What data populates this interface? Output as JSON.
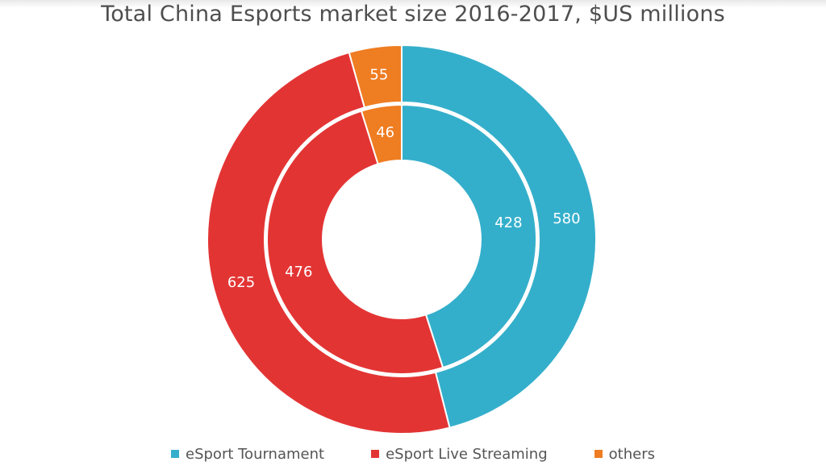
{
  "chart_data": {
    "type": "pie",
    "title": "Total China Esports market size 2016-2017, $US millions",
    "categories": [
      "eSport Tournament",
      "eSport Live Streaming",
      "others"
    ],
    "colors": [
      "#34afcb",
      "#e33434",
      "#ef7d22"
    ],
    "series": [
      {
        "values": [
          428,
          476,
          46
        ]
      },
      {
        "values": [
          580,
          625,
          55
        ]
      }
    ],
    "legend_position": "bottom"
  }
}
